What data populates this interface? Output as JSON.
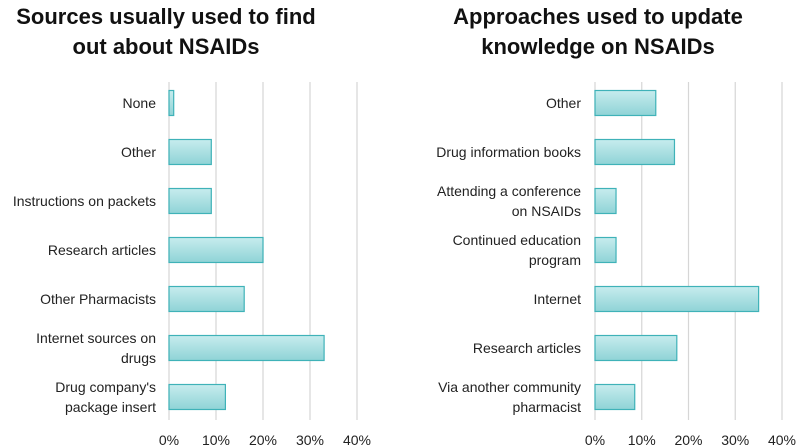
{
  "colors": {
    "bar_fill_top": "#c7ecee",
    "bar_fill_bottom": "#8fd3d6",
    "bar_stroke": "#3fb2b8",
    "grid": "#d6d6d6"
  },
  "chart_data": [
    {
      "type": "bar",
      "orientation": "horizontal",
      "title": "Sources usually used to find out about NSAIDs",
      "title_lines": [
        "Sources usually used to find",
        "out about NSAIDs"
      ],
      "categories": [
        "None",
        "Other",
        "Instructions on packets",
        "Research articles",
        "Other Pharmacists",
        "Internet sources on drugs",
        "Drug company's package insert"
      ],
      "category_lines": [
        [
          "None"
        ],
        [
          "Other"
        ],
        [
          "Instructions on packets"
        ],
        [
          "Research articles"
        ],
        [
          "Other Pharmacists"
        ],
        [
          "Internet sources on",
          "drugs"
        ],
        [
          "Drug company's",
          "package insert"
        ]
      ],
      "values": [
        1,
        9,
        9,
        20,
        16,
        33,
        12
      ],
      "xlim": [
        0,
        40
      ],
      "xticks": [
        0,
        10,
        20,
        30,
        40
      ],
      "xtick_labels": [
        "0%",
        "10%",
        "20%",
        "30%",
        "40%"
      ],
      "xlabel": "",
      "ylabel": "",
      "grid": true
    },
    {
      "type": "bar",
      "orientation": "horizontal",
      "title": "Approaches used to update knowledge on NSAIDs",
      "title_lines": [
        "Approaches used to update",
        "knowledge on NSAIDs"
      ],
      "categories": [
        "Other",
        "Drug information books",
        "Attending a conference on NSAIDs",
        "Continued education program",
        "Internet",
        "Research articles",
        "Via another community pharmacist"
      ],
      "category_lines": [
        [
          "Other"
        ],
        [
          "Drug information books"
        ],
        [
          "Attending a conference",
          "on NSAIDs"
        ],
        [
          "Continued education",
          "program"
        ],
        [
          "Internet"
        ],
        [
          "Research articles"
        ],
        [
          "Via another community",
          "pharmacist"
        ]
      ],
      "values": [
        13,
        17,
        4.5,
        4.5,
        35,
        17.5,
        8.5
      ],
      "xlim": [
        0,
        40
      ],
      "xticks": [
        0,
        10,
        20,
        30,
        40
      ],
      "xtick_labels": [
        "0%",
        "10%",
        "20%",
        "30%",
        "40%"
      ],
      "xlabel": "",
      "ylabel": "",
      "grid": true
    }
  ]
}
